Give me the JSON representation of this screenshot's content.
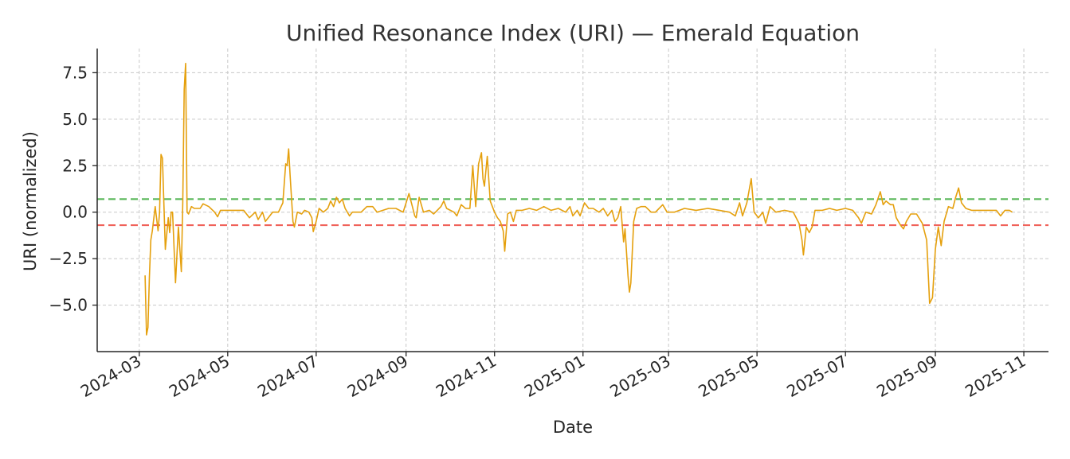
{
  "chart_data": {
    "type": "line",
    "title": "Unified Resonance Index (URI) — Emerald Equation",
    "xlabel": "Date",
    "ylabel": "URI (normalized)",
    "x_range": [
      "2024-02-01",
      "2025-11-18"
    ],
    "ylim": [
      -7.5,
      8.8
    ],
    "grid": true,
    "x_ticks": [
      "2024-03",
      "2024-05",
      "2024-07",
      "2024-09",
      "2024-11",
      "2025-01",
      "2025-03",
      "2025-05",
      "2025-07",
      "2025-09",
      "2025-11"
    ],
    "y_ticks": [
      7.5,
      5.0,
      2.5,
      0.0,
      -2.5,
      -5.0
    ],
    "y_tick_labels": [
      "7.5",
      "5.0",
      "2.5",
      "0.0",
      "−2.5",
      "−5.0"
    ],
    "colors": {
      "line": "#e5a00d",
      "upper_threshold": "#5cb85c",
      "lower_threshold": "#f0625a",
      "grid": "#c8c8c8",
      "axis": "#262626"
    },
    "thresholds": [
      {
        "value": 0.7,
        "color": "#5cb85c",
        "style": "dashed"
      },
      {
        "value": -0.7,
        "color": "#f0625a",
        "style": "dashed"
      }
    ],
    "series": [
      {
        "color": "#e5a00d",
        "points": [
          [
            "2024-03-05",
            -3.4
          ],
          [
            "2024-03-06",
            -6.6
          ],
          [
            "2024-03-07",
            -6.2
          ],
          [
            "2024-03-08",
            -3.5
          ],
          [
            "2024-03-09",
            -1.5
          ],
          [
            "2024-03-10",
            -1.0
          ],
          [
            "2024-03-12",
            0.3
          ],
          [
            "2024-03-14",
            -1.0
          ],
          [
            "2024-03-15",
            0.0
          ],
          [
            "2024-03-16",
            3.1
          ],
          [
            "2024-03-17",
            2.9
          ],
          [
            "2024-03-19",
            -2.0
          ],
          [
            "2024-03-21",
            -0.3
          ],
          [
            "2024-03-22",
            -1.1
          ],
          [
            "2024-03-23",
            0.0
          ],
          [
            "2024-03-24",
            0.0
          ],
          [
            "2024-03-26",
            -3.8
          ],
          [
            "2024-03-28",
            -0.8
          ],
          [
            "2024-03-30",
            -3.2
          ],
          [
            "2024-03-31",
            0.5
          ],
          [
            "2024-04-01",
            6.6
          ],
          [
            "2024-04-02",
            8.0
          ],
          [
            "2024-04-03",
            0.0
          ],
          [
            "2024-04-04",
            -0.1
          ],
          [
            "2024-04-06",
            0.3
          ],
          [
            "2024-04-08",
            0.2
          ],
          [
            "2024-04-12",
            0.2
          ],
          [
            "2024-04-14",
            0.45
          ],
          [
            "2024-04-18",
            0.3
          ],
          [
            "2024-04-22",
            0.0
          ],
          [
            "2024-04-24",
            -0.25
          ],
          [
            "2024-04-26",
            0.1
          ],
          [
            "2024-05-05",
            0.1
          ],
          [
            "2024-05-12",
            0.1
          ],
          [
            "2024-05-16",
            -0.3
          ],
          [
            "2024-05-20",
            0.0
          ],
          [
            "2024-05-22",
            -0.4
          ],
          [
            "2024-05-25",
            0.0
          ],
          [
            "2024-05-27",
            -0.5
          ],
          [
            "2024-06-01",
            0.0
          ],
          [
            "2024-06-05",
            0.0
          ],
          [
            "2024-06-08",
            0.5
          ],
          [
            "2024-06-10",
            2.6
          ],
          [
            "2024-06-11",
            2.5
          ],
          [
            "2024-06-12",
            3.4
          ],
          [
            "2024-06-13",
            2.0
          ],
          [
            "2024-06-15",
            -0.5
          ],
          [
            "2024-06-16",
            -0.8
          ],
          [
            "2024-06-18",
            0.0
          ],
          [
            "2024-06-21",
            -0.1
          ],
          [
            "2024-06-23",
            0.1
          ],
          [
            "2024-06-26",
            0.0
          ],
          [
            "2024-06-28",
            -0.3
          ],
          [
            "2024-06-29",
            -1.05
          ],
          [
            "2024-07-01",
            -0.5
          ],
          [
            "2024-07-03",
            0.2
          ],
          [
            "2024-07-06",
            0.0
          ],
          [
            "2024-07-09",
            0.2
          ],
          [
            "2024-07-11",
            0.6
          ],
          [
            "2024-07-13",
            0.3
          ],
          [
            "2024-07-15",
            0.8
          ],
          [
            "2024-07-17",
            0.5
          ],
          [
            "2024-07-19",
            0.7
          ],
          [
            "2024-07-21",
            0.2
          ],
          [
            "2024-07-24",
            -0.2
          ],
          [
            "2024-07-26",
            0.0
          ],
          [
            "2024-08-01",
            0.0
          ],
          [
            "2024-08-05",
            0.3
          ],
          [
            "2024-08-09",
            0.3
          ],
          [
            "2024-08-12",
            0.0
          ],
          [
            "2024-08-20",
            0.2
          ],
          [
            "2024-08-25",
            0.2
          ],
          [
            "2024-08-30",
            0.0
          ],
          [
            "2024-09-01",
            0.5
          ],
          [
            "2024-09-03",
            1.0
          ],
          [
            "2024-09-05",
            0.4
          ],
          [
            "2024-09-07",
            -0.2
          ],
          [
            "2024-09-08",
            -0.3
          ],
          [
            "2024-09-10",
            0.8
          ],
          [
            "2024-09-13",
            0.0
          ],
          [
            "2024-09-17",
            0.1
          ],
          [
            "2024-09-20",
            -0.1
          ],
          [
            "2024-09-25",
            0.3
          ],
          [
            "2024-09-27",
            0.6
          ],
          [
            "2024-09-29",
            0.2
          ],
          [
            "2024-10-04",
            0.0
          ],
          [
            "2024-10-06",
            -0.2
          ],
          [
            "2024-10-09",
            0.4
          ],
          [
            "2024-10-12",
            0.2
          ],
          [
            "2024-10-15",
            0.2
          ],
          [
            "2024-10-17",
            2.5
          ],
          [
            "2024-10-19",
            0.3
          ],
          [
            "2024-10-21",
            2.6
          ],
          [
            "2024-10-23",
            3.2
          ],
          [
            "2024-10-24",
            1.8
          ],
          [
            "2024-10-25",
            1.4
          ],
          [
            "2024-10-27",
            3.0
          ],
          [
            "2024-10-29",
            0.6
          ],
          [
            "2024-11-01",
            0.0
          ],
          [
            "2024-11-03",
            -0.3
          ],
          [
            "2024-11-05",
            -0.5
          ],
          [
            "2024-11-07",
            -1.0
          ],
          [
            "2024-11-08",
            -2.1
          ],
          [
            "2024-11-10",
            -0.1
          ],
          [
            "2024-11-12",
            0.0
          ],
          [
            "2024-11-14",
            -0.5
          ],
          [
            "2024-11-16",
            0.1
          ],
          [
            "2024-11-20",
            0.1
          ],
          [
            "2024-11-25",
            0.2
          ],
          [
            "2024-11-30",
            0.1
          ],
          [
            "2024-12-05",
            0.3
          ],
          [
            "2024-12-10",
            0.1
          ],
          [
            "2024-12-15",
            0.2
          ],
          [
            "2024-12-20",
            0.0
          ],
          [
            "2024-12-23",
            0.3
          ],
          [
            "2024-12-25",
            -0.2
          ],
          [
            "2024-12-28",
            0.1
          ],
          [
            "2024-12-30",
            -0.2
          ],
          [
            "2025-01-02",
            0.5
          ],
          [
            "2025-01-05",
            0.2
          ],
          [
            "2025-01-08",
            0.2
          ],
          [
            "2025-01-12",
            0.0
          ],
          [
            "2025-01-15",
            0.2
          ],
          [
            "2025-01-18",
            -0.2
          ],
          [
            "2025-01-21",
            0.1
          ],
          [
            "2025-01-23",
            -0.5
          ],
          [
            "2025-01-25",
            -0.3
          ],
          [
            "2025-01-27",
            0.3
          ],
          [
            "2025-01-29",
            -1.6
          ],
          [
            "2025-01-30",
            -0.9
          ],
          [
            "2025-02-01",
            -3.4
          ],
          [
            "2025-02-02",
            -4.3
          ],
          [
            "2025-02-03",
            -3.8
          ],
          [
            "2025-02-05",
            -0.5
          ],
          [
            "2025-02-07",
            0.2
          ],
          [
            "2025-02-10",
            0.3
          ],
          [
            "2025-02-13",
            0.3
          ],
          [
            "2025-02-17",
            0.0
          ],
          [
            "2025-02-20",
            0.0
          ],
          [
            "2025-02-25",
            0.4
          ],
          [
            "2025-02-28",
            0.0
          ],
          [
            "2025-03-05",
            0.0
          ],
          [
            "2025-03-12",
            0.2
          ],
          [
            "2025-03-20",
            0.1
          ],
          [
            "2025-03-28",
            0.2
          ],
          [
            "2025-04-05",
            0.1
          ],
          [
            "2025-04-12",
            0.0
          ],
          [
            "2025-04-16",
            -0.2
          ],
          [
            "2025-04-19",
            0.5
          ],
          [
            "2025-04-21",
            -0.2
          ],
          [
            "2025-04-24",
            0.5
          ],
          [
            "2025-04-27",
            1.8
          ],
          [
            "2025-04-29",
            0.0
          ],
          [
            "2025-05-02",
            -0.3
          ],
          [
            "2025-05-05",
            0.0
          ],
          [
            "2025-05-07",
            -0.6
          ],
          [
            "2025-05-10",
            0.3
          ],
          [
            "2025-05-14",
            0.0
          ],
          [
            "2025-05-20",
            0.1
          ],
          [
            "2025-05-26",
            0.0
          ],
          [
            "2025-05-30",
            -0.6
          ],
          [
            "2025-06-01",
            -1.5
          ],
          [
            "2025-06-02",
            -2.3
          ],
          [
            "2025-06-04",
            -0.8
          ],
          [
            "2025-06-06",
            -1.1
          ],
          [
            "2025-06-08",
            -0.8
          ],
          [
            "2025-06-10",
            0.1
          ],
          [
            "2025-06-15",
            0.1
          ],
          [
            "2025-06-20",
            0.2
          ],
          [
            "2025-06-25",
            0.1
          ],
          [
            "2025-07-01",
            0.2
          ],
          [
            "2025-07-06",
            0.1
          ],
          [
            "2025-07-10",
            -0.3
          ],
          [
            "2025-07-12",
            -0.6
          ],
          [
            "2025-07-15",
            0.0
          ],
          [
            "2025-07-19",
            -0.1
          ],
          [
            "2025-07-22",
            0.4
          ],
          [
            "2025-07-25",
            1.1
          ],
          [
            "2025-07-27",
            0.4
          ],
          [
            "2025-07-29",
            0.6
          ],
          [
            "2025-08-01",
            0.4
          ],
          [
            "2025-08-03",
            0.4
          ],
          [
            "2025-08-05",
            -0.3
          ],
          [
            "2025-08-08",
            -0.7
          ],
          [
            "2025-08-10",
            -0.9
          ],
          [
            "2025-08-12",
            -0.5
          ],
          [
            "2025-08-15",
            -0.1
          ],
          [
            "2025-08-19",
            -0.1
          ],
          [
            "2025-08-23",
            -0.6
          ],
          [
            "2025-08-26",
            -1.5
          ],
          [
            "2025-08-28",
            -4.9
          ],
          [
            "2025-08-30",
            -4.6
          ],
          [
            "2025-09-01",
            -2.0
          ],
          [
            "2025-09-03",
            -0.8
          ],
          [
            "2025-09-05",
            -1.8
          ],
          [
            "2025-09-07",
            -0.5
          ],
          [
            "2025-09-10",
            0.3
          ],
          [
            "2025-09-13",
            0.2
          ],
          [
            "2025-09-15",
            0.8
          ],
          [
            "2025-09-17",
            1.3
          ],
          [
            "2025-09-19",
            0.5
          ],
          [
            "2025-09-22",
            0.2
          ],
          [
            "2025-09-26",
            0.1
          ],
          [
            "2025-10-03",
            0.1
          ],
          [
            "2025-10-08",
            0.1
          ],
          [
            "2025-10-13",
            0.1
          ],
          [
            "2025-10-16",
            -0.2
          ],
          [
            "2025-10-19",
            0.1
          ],
          [
            "2025-10-22",
            0.1
          ],
          [
            "2025-10-24",
            0.0
          ]
        ]
      }
    ]
  }
}
